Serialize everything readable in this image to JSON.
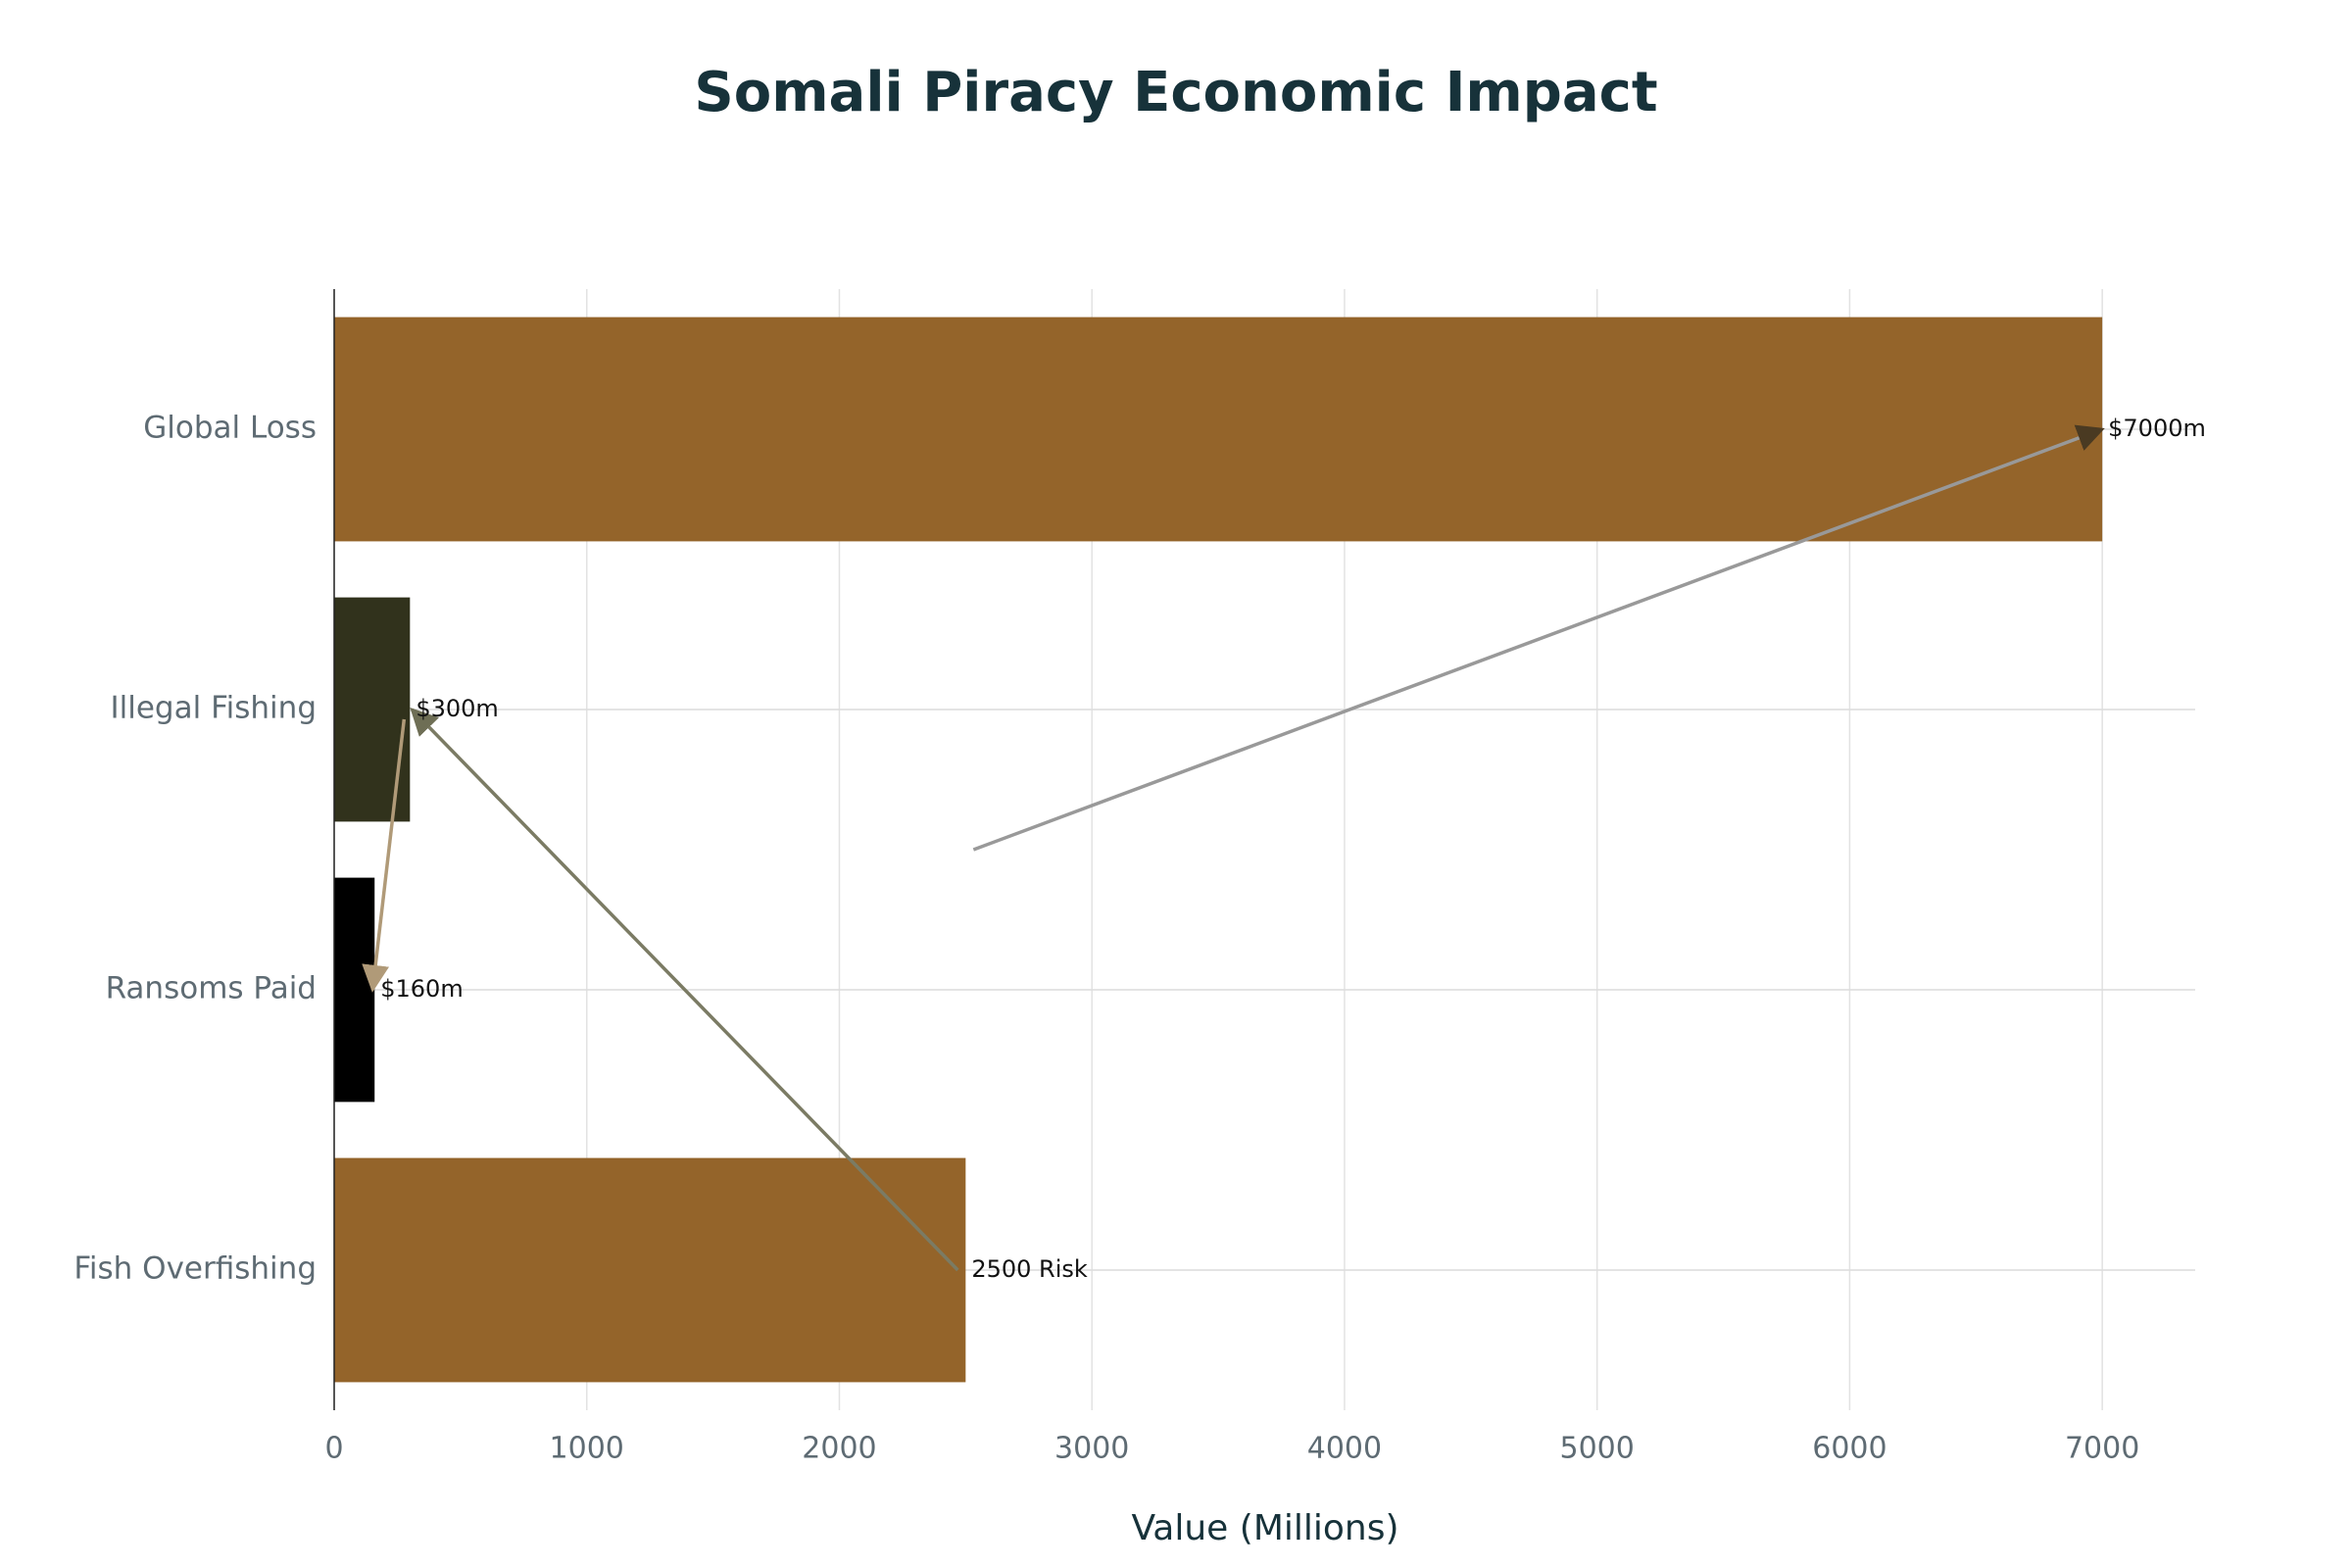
{
  "chart_data": {
    "type": "bar",
    "orientation": "horizontal",
    "title": "Somali Piracy Economic Impact",
    "xlabel": "Value (Millions)",
    "categories": [
      "Global Loss",
      "Illegal Fishing",
      "Ransoms Paid",
      "Fish Overfishing"
    ],
    "values": [
      7000,
      300,
      160,
      2500
    ],
    "value_labels": [
      "$7000m",
      "$300m",
      "$160m",
      "2500 Risk"
    ],
    "colors": [
      "#94642a",
      "#31321c",
      "#000000",
      "#94642a"
    ],
    "xlim": [
      0,
      7368
    ],
    "xticks": [
      0,
      1000,
      2000,
      3000,
      4000,
      5000,
      6000,
      7000
    ],
    "grid": true
  }
}
